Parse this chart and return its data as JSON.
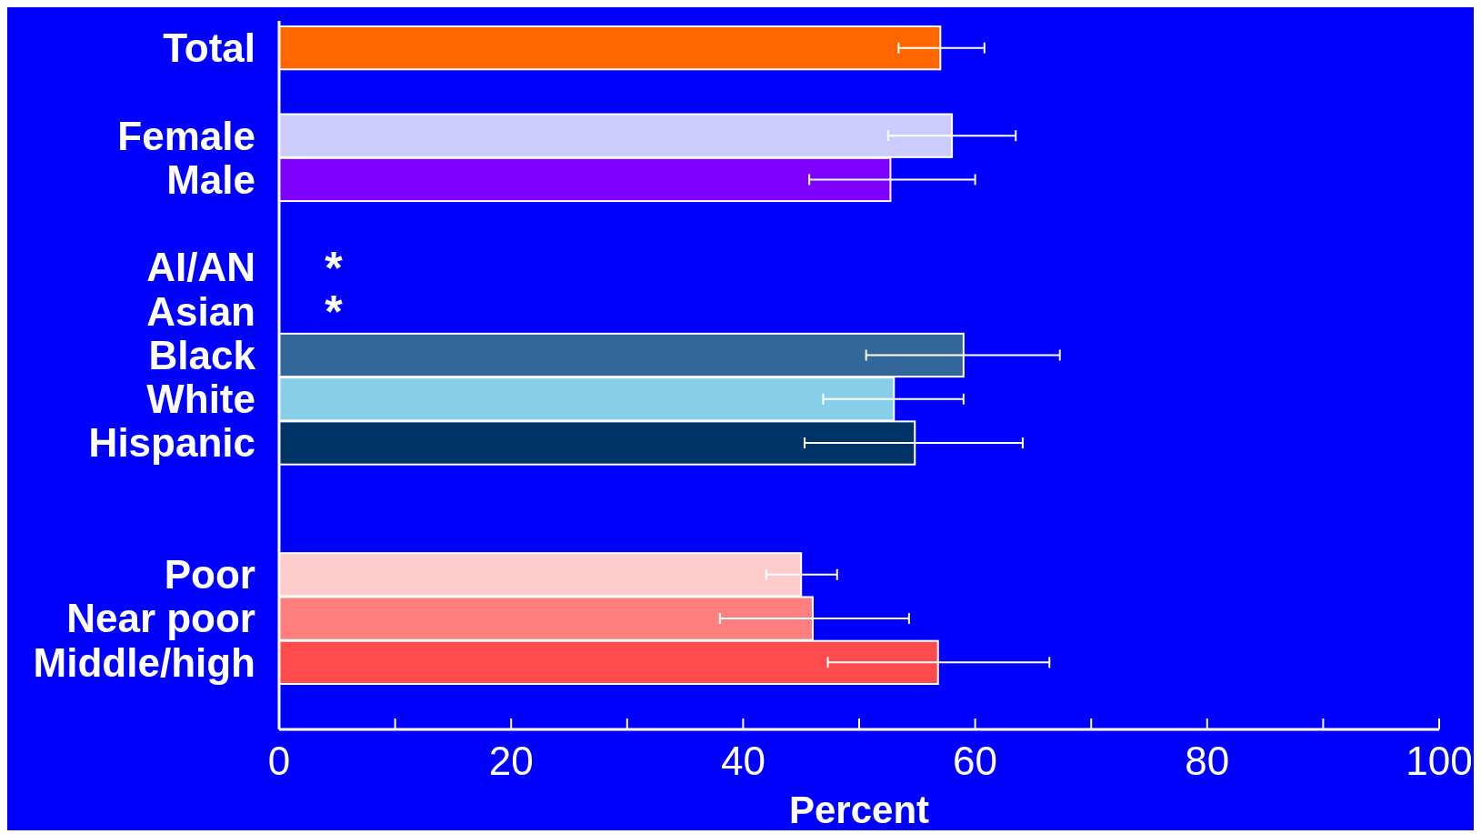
{
  "chart_data": {
    "type": "bar",
    "orientation": "horizontal",
    "xlabel": "Percent",
    "categories": [
      "Total",
      null,
      "Female",
      "Male",
      null,
      "AI/AN",
      "Asian",
      "Black",
      "White",
      "Hispanic",
      null,
      null,
      "Poor",
      "Near poor",
      "Middle/high"
    ],
    "values": [
      57,
      null,
      58,
      52.7,
      null,
      null,
      null,
      59,
      53,
      54.8,
      null,
      null,
      45,
      46,
      56.8
    ],
    "errors": [
      [
        53.4,
        60.8
      ],
      null,
      [
        52.5,
        63.5
      ],
      [
        45.7,
        60
      ],
      null,
      null,
      null,
      [
        50.6,
        67.3
      ],
      [
        46.9,
        59
      ],
      [
        45.3,
        64.1
      ],
      null,
      null,
      [
        42,
        48.1
      ],
      [
        38,
        54.3
      ],
      [
        47.3,
        66.4
      ]
    ],
    "colors": [
      "#ff6600",
      null,
      "#ccccff",
      "#8000ff",
      null,
      null,
      null,
      "#336699",
      "#87cfe8",
      "#003366",
      null,
      null,
      "#ffcccc",
      "#ff7f7f",
      "#ff4b4b"
    ],
    "xlim": [
      0,
      100
    ],
    "xticks": [
      0,
      {
        "value": 10,
        "label": null
      },
      20,
      {
        "value": 30,
        "label": null
      },
      40,
      {
        "value": 50,
        "label": null
      },
      60,
      {
        "value": 70,
        "label": null
      },
      80,
      {
        "value": 90,
        "label": null
      },
      100
    ],
    "annotations": [
      "*",
      "*"
    ]
  }
}
